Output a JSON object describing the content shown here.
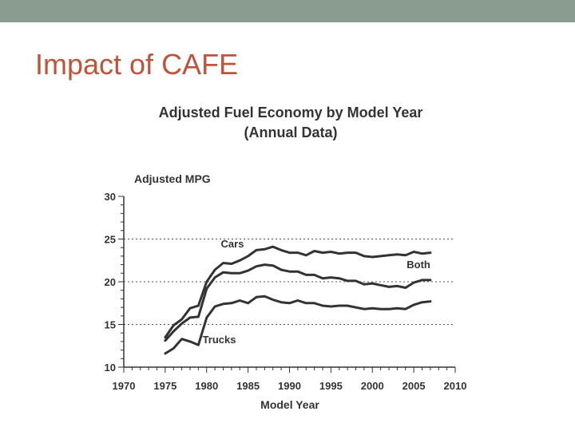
{
  "slide": {
    "title": "Impact of CAFE"
  },
  "colors": {
    "top_bar": "#8a9c8f",
    "title": "#c0533a",
    "line": "#333333",
    "grid": "#555555"
  },
  "chart_data": {
    "type": "line",
    "title": "Adjusted Fuel Economy by Model Year",
    "subtitle": "(Annual Data)",
    "xlabel": "Model Year",
    "ylabel": "Adjusted MPG",
    "xlim": [
      1970,
      2010
    ],
    "ylim": [
      10,
      30
    ],
    "x_ticks": [
      1970,
      1975,
      1980,
      1985,
      1990,
      1995,
      2000,
      2005,
      2010
    ],
    "y_ticks": [
      10,
      15,
      20,
      25,
      30
    ],
    "y_tick_labels": [
      "10",
      "15",
      "20",
      "25",
      "30"
    ],
    "x_tick_labels": [
      "1970",
      "1975",
      "1980",
      "1985",
      "1990",
      "1995",
      "2000",
      "2005",
      "2010"
    ],
    "grid": "dotted horizontal at 15, 20, 25",
    "x": [
      1975,
      1976,
      1977,
      1978,
      1979,
      1980,
      1981,
      1982,
      1983,
      1984,
      1985,
      1986,
      1987,
      1988,
      1989,
      1990,
      1991,
      1992,
      1993,
      1994,
      1995,
      1996,
      1997,
      1998,
      1999,
      2000,
      2001,
      2002,
      2003,
      2004,
      2005,
      2006,
      2007
    ],
    "series": [
      {
        "name": "Cars",
        "values": [
          13.5,
          14.9,
          15.6,
          16.9,
          17.2,
          20.0,
          21.4,
          22.2,
          22.1,
          22.5,
          23.0,
          23.7,
          23.8,
          24.1,
          23.7,
          23.4,
          23.4,
          23.1,
          23.6,
          23.4,
          23.5,
          23.3,
          23.4,
          23.4,
          23.0,
          22.9,
          23.0,
          23.1,
          23.2,
          23.1,
          23.5,
          23.3,
          23.4
        ]
      },
      {
        "name": "Both",
        "values": [
          13.1,
          14.2,
          15.1,
          15.8,
          15.9,
          19.2,
          20.5,
          21.1,
          21.0,
          21.0,
          21.3,
          21.8,
          22.0,
          21.9,
          21.4,
          21.2,
          21.2,
          20.8,
          20.8,
          20.4,
          20.5,
          20.4,
          20.1,
          20.1,
          19.7,
          19.8,
          19.6,
          19.4,
          19.5,
          19.3,
          19.9,
          20.2,
          20.2
        ]
      },
      {
        "name": "Trucks",
        "values": [
          11.6,
          12.2,
          13.3,
          13.0,
          12.6,
          15.8,
          17.1,
          17.4,
          17.5,
          17.8,
          17.5,
          18.2,
          18.3,
          17.9,
          17.6,
          17.5,
          17.8,
          17.5,
          17.5,
          17.2,
          17.1,
          17.2,
          17.2,
          17.0,
          16.8,
          16.9,
          16.8,
          16.8,
          16.9,
          16.8,
          17.3,
          17.6,
          17.7
        ]
      }
    ]
  }
}
